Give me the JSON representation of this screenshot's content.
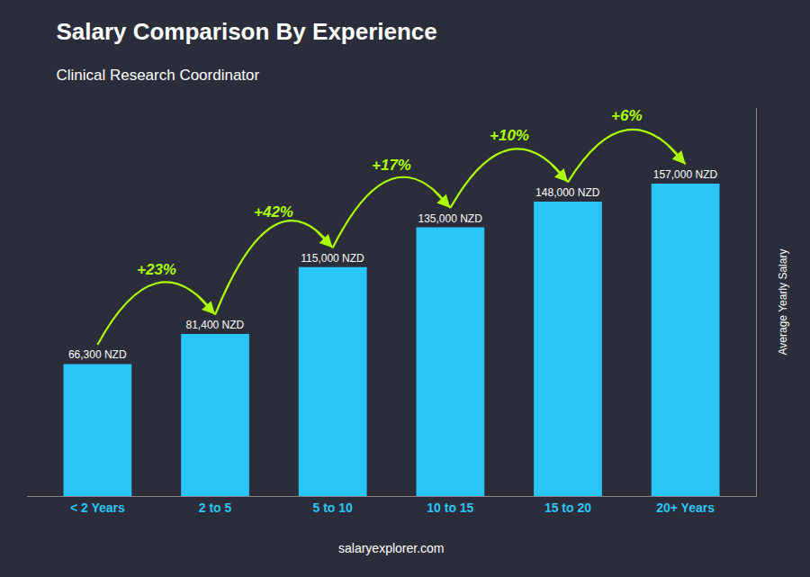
{
  "chart_data": {
    "type": "bar",
    "title": "Salary Comparison By Experience",
    "subtitle": "Clinical Research Coordinator",
    "ylabel": "Average Yearly Salary",
    "categories": [
      "< 2 Years",
      "2 to 5",
      "5 to 10",
      "10 to 15",
      "15 to 20",
      "20+ Years"
    ],
    "values": [
      66300,
      81400,
      115000,
      135000,
      148000,
      157000
    ],
    "value_labels": [
      "66,300 NZD",
      "81,400 NZD",
      "115,000 NZD",
      "135,000 NZD",
      "148,000 NZD",
      "157,000 NZD"
    ],
    "data_labels": true,
    "color": "#29C5F6",
    "ylim": [
      0,
      195000
    ],
    "grid": false,
    "tick_labels": "x",
    "annotations": [
      {
        "text": "+23%",
        "from": "< 2 Years",
        "to": "2 to 5"
      },
      {
        "text": "+42%",
        "from": "2 to 5",
        "to": "5 to 10"
      },
      {
        "text": "+17%",
        "from": "5 to 10",
        "to": "10 to 15"
      },
      {
        "text": "+10%",
        "from": "10 to 15",
        "to": "15 to 20"
      },
      {
        "text": "+6%",
        "from": "15 to 20",
        "to": "20+ Years"
      },
      {
        "text": "salaryexplorer.com"
      }
    ]
  }
}
